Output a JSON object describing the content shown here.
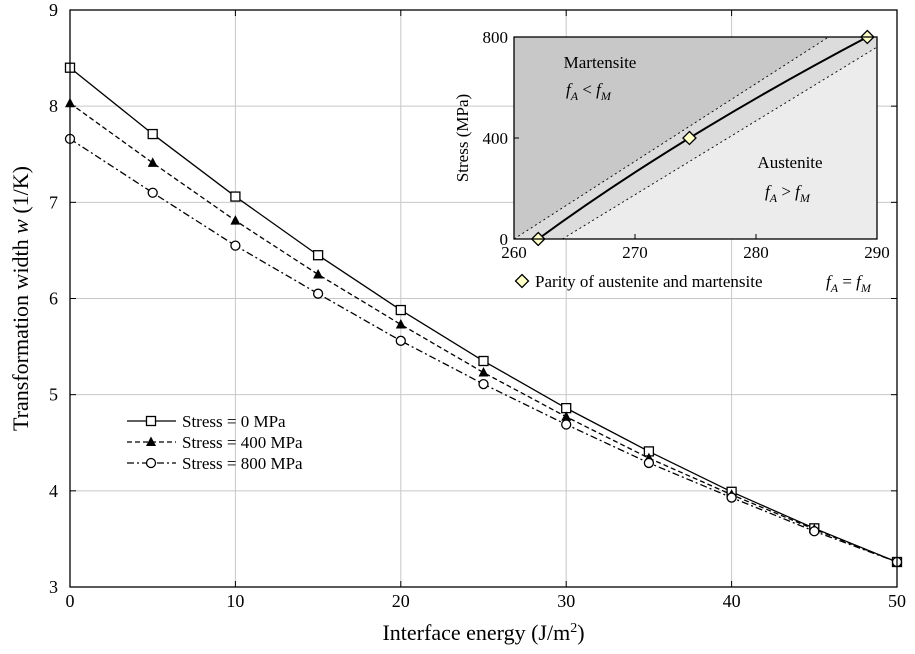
{
  "chart_data": [
    {
      "type": "line",
      "title": "",
      "xlabel": "Interface energy (J/m",
      "xlabel_sup": "2",
      "xlabel_end": ")",
      "ylabel": "Transformation width ",
      "ylabel_var": "w",
      "ylabel_unit": " (1/K)",
      "xlim": [
        0,
        50
      ],
      "ylim": [
        3,
        9
      ],
      "xticks": [
        0,
        10,
        20,
        30,
        40,
        50
      ],
      "yticks": [
        3,
        4,
        5,
        6,
        7,
        8,
        9
      ],
      "grid": true,
      "legend_position": "lower-left",
      "x": [
        0,
        5,
        10,
        15,
        20,
        25,
        30,
        35,
        40,
        45,
        50
      ],
      "series": [
        {
          "name": "Stress = 0 MPa",
          "marker": "open-square",
          "dash": "solid",
          "values": [
            8.4,
            7.71,
            7.06,
            6.45,
            5.88,
            5.35,
            4.86,
            4.41,
            3.99,
            3.61,
            3.26
          ]
        },
        {
          "name": "Stress = 400 MPa",
          "marker": "filled-triangle",
          "dash": "dashed",
          "values": [
            8.03,
            7.41,
            6.81,
            6.25,
            5.73,
            5.23,
            4.77,
            4.34,
            3.96,
            3.6,
            3.26
          ]
        },
        {
          "name": "Stress = 800 MPa",
          "marker": "open-circle",
          "dash": "dash-dot",
          "values": [
            7.66,
            7.1,
            6.55,
            6.05,
            5.56,
            5.11,
            4.69,
            4.29,
            3.93,
            3.58,
            3.26
          ]
        }
      ]
    },
    {
      "type": "line",
      "title": "",
      "xlabel": "",
      "ylabel": "Stress (MPa)",
      "xlim": [
        260,
        290
      ],
      "ylim": [
        0,
        800
      ],
      "xticks": [
        260,
        270,
        280,
        290
      ],
      "yticks": [
        0,
        400,
        800
      ],
      "grid": false,
      "legend_position": "below",
      "series": [
        {
          "name": "Parity of austenite and martensite",
          "marker": "diamond",
          "x": [
            262.0,
            274.5,
            289.2
          ],
          "values": [
            0,
            400,
            800
          ]
        }
      ],
      "boundary_lines": [
        {
          "x": [
            260.0,
            286.0
          ],
          "values": [
            0,
            800
          ],
          "dash": "dotted"
        },
        {
          "x": [
            264.0,
            290.0
          ],
          "values": [
            0,
            760
          ],
          "dash": "dotted"
        }
      ],
      "regions": [
        {
          "label": "Martensite",
          "condition": "< ",
          "color": "#c8c8c8"
        },
        {
          "label": "Austenite",
          "condition": "> ",
          "color": "#ececec"
        }
      ],
      "band_color": "#dcdcdc",
      "parity_condition": "= ",
      "symbol_A": "f",
      "sub_A": "A",
      "symbol_M": "f",
      "sub_M": "M"
    }
  ]
}
